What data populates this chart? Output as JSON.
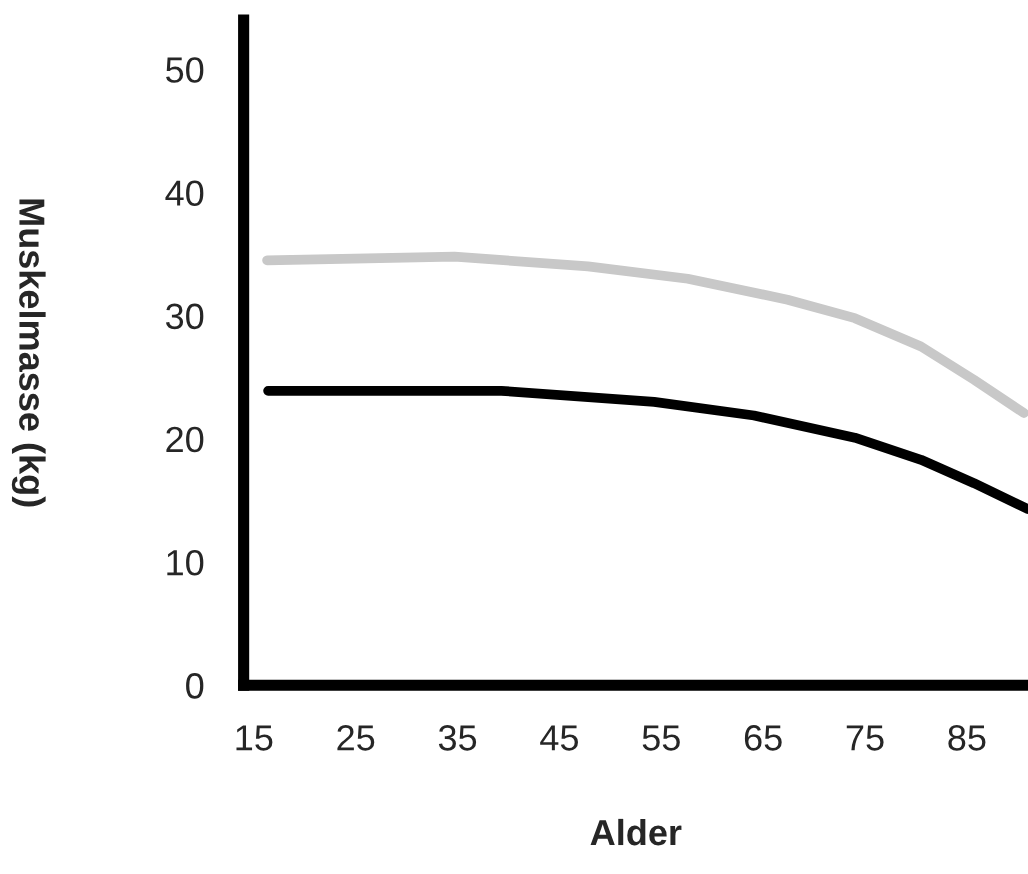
{
  "chart_data": {
    "type": "line",
    "xlabel": "Alder",
    "ylabel": "Muskelmasse (kg)",
    "xlim": [
      14,
      91
    ],
    "ylim": [
      0,
      54
    ],
    "xticks": [
      15,
      25,
      35,
      45,
      55,
      65,
      75,
      85
    ],
    "yticks": [
      0,
      10,
      20,
      30,
      40,
      50
    ],
    "grid": false,
    "legend": false,
    "marker": "none",
    "line_style": "solid",
    "series": [
      {
        "color": "#c8c8c8",
        "x": [
          16.3,
          34.7,
          47.8,
          57.6,
          67.4,
          74.0,
          80.5,
          85.7,
          90.6
        ],
        "values": [
          34.5,
          34.8,
          34.0,
          33.0,
          31.3,
          29.8,
          27.5,
          24.8,
          22.1
        ]
      },
      {
        "color": "#000000",
        "x": [
          16.4,
          39.3,
          54.3,
          64.1,
          74.0,
          80.5,
          85.7,
          91.0
        ],
        "values": [
          23.9,
          23.9,
          23.0,
          21.9,
          20.1,
          18.3,
          16.4,
          14.3
        ]
      }
    ]
  }
}
